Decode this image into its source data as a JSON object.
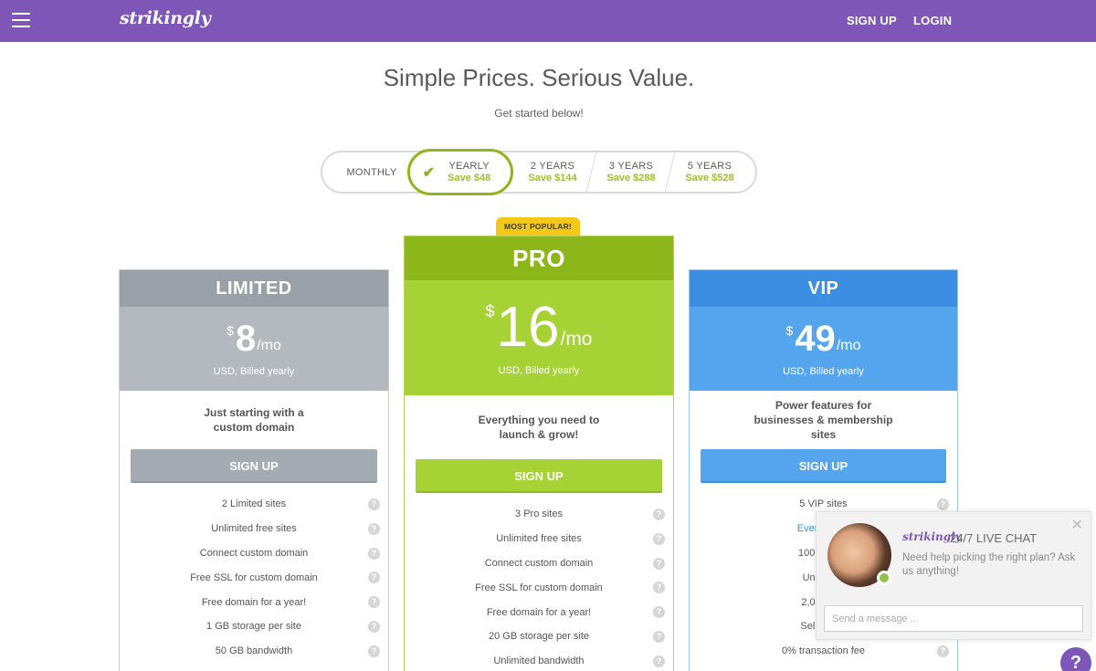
{
  "header": {
    "logo": "strikingly",
    "signup": "SIGN UP",
    "login": "LOGIN"
  },
  "hero": {
    "title": "Simple Prices. Serious Value.",
    "subtitle": "Get started below!"
  },
  "billing": {
    "selected": "yearly",
    "monthly": "MONTHLY",
    "yearly": {
      "name": "YEARLY",
      "save": "Save $48"
    },
    "two_years": {
      "name": "2 YEARS",
      "save": "Save $144"
    },
    "three_years": {
      "name": "3 YEARS",
      "save": "Save $288"
    },
    "five_years": {
      "name": "5 YEARS",
      "save": "Save $528"
    }
  },
  "badge": "MOST POPULAR!",
  "plans": {
    "limited": {
      "name": "LIMITED",
      "currency": "$",
      "amount": "8",
      "per": "/mo",
      "billed": "USD, Billed yearly",
      "description": "Just starting with a custom domain",
      "cta": "SIGN UP",
      "features": [
        "2 Limited sites",
        "Unlimited free sites",
        "Connect custom domain",
        "Free SSL for custom domain",
        "Free domain for a year!",
        "1 GB storage per site",
        "50 GB bandwidth"
      ]
    },
    "pro": {
      "name": "PRO",
      "currency": "$",
      "amount": "16",
      "per": "/mo",
      "billed": "USD, Billed yearly",
      "description": "Everything you need to launch & grow!",
      "cta": "SIGN UP",
      "features": [
        "3 Pro sites",
        "Unlimited free sites",
        "Connect custom domain",
        "Free SSL for custom domain",
        "Free domain for a year!",
        "20 GB storage per site",
        "Unlimited bandwidth"
      ]
    },
    "vip": {
      "name": "VIP",
      "currency": "$",
      "amount": "49",
      "per": "/mo",
      "billed": "USD, Billed yearly",
      "description": "Power features for businesses & membership sites",
      "cta": "SIGN UP",
      "features": [
        "5 VIP sites",
        "Everything i",
        "100 GB sto",
        "Unlimited",
        "2,000 Acti",
        "Sell unlimi",
        "0% transaction fee"
      ]
    }
  },
  "chat": {
    "brand": "strikingly",
    "title": "24/7 LIVE CHAT",
    "message": "Need help picking the right plan? Ask us anything!",
    "placeholder": "Send a message ..."
  },
  "help_fab": "?",
  "colors": {
    "brand_purple": "#7e56b8",
    "limited_gray": "#99a0a8",
    "pro_green": "#8db61a",
    "vip_blue": "#3b8ee2",
    "save_green": "#9cc225"
  }
}
